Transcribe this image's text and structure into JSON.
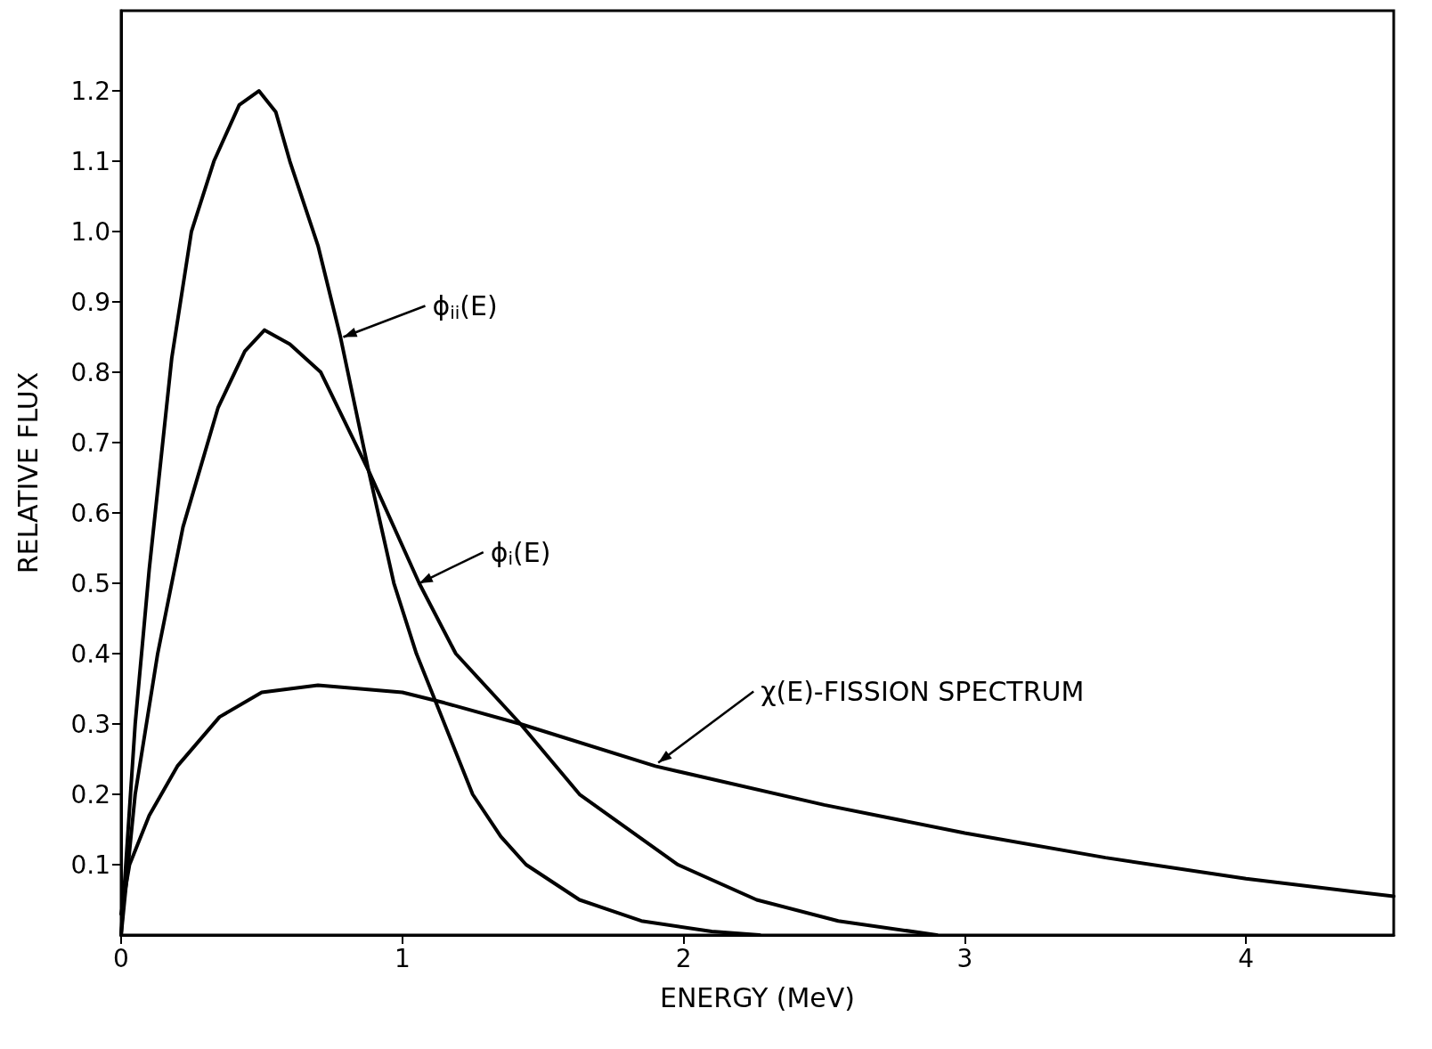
{
  "chart_data": {
    "type": "line",
    "xlabel": "ENERGY (MeV)",
    "ylabel": "RELATIVE FLUX",
    "xlim": [
      0,
      4.525
    ],
    "ylim": [
      0,
      1.314
    ],
    "xticks": [
      0,
      1,
      2,
      3,
      4
    ],
    "yticks": [
      0.1,
      0.2,
      0.3,
      0.4,
      0.5,
      0.6,
      0.7,
      0.8,
      0.9,
      {
        "value": 1,
        "label": "1.0"
      },
      1.1,
      1.2
    ],
    "grid": false,
    "marker": "none",
    "line_style": "solid",
    "series": [
      {
        "color": "#000000",
        "x": [
          0,
          0.05,
          0.1,
          0.18,
          0.25,
          0.33,
          0.42,
          0.49,
          0.55,
          0.6,
          0.7,
          0.78,
          0.88,
          0.97,
          1.05,
          1.12,
          1.25,
          1.35,
          1.44,
          1.63,
          1.85,
          2.1,
          2.27
        ],
        "values": [
          0,
          0.3,
          0.52,
          0.82,
          1.0,
          1.1,
          1.18,
          1.2,
          1.17,
          1.1,
          0.98,
          0.85,
          0.66,
          0.5,
          0.4,
          0.33,
          0.2,
          0.14,
          0.1,
          0.05,
          0.02,
          0.005,
          0
        ]
      },
      {
        "color": "#000000",
        "x": [
          0,
          0.05,
          0.13,
          0.22,
          0.345,
          0.44,
          0.51,
          0.6,
          0.71,
          0.88,
          1.06,
          1.19,
          1.42,
          1.63,
          1.98,
          2.26,
          2.55,
          2.9
        ],
        "values": [
          0,
          0.2,
          0.4,
          0.58,
          0.75,
          0.83,
          0.86,
          0.84,
          0.8,
          0.66,
          0.5,
          0.4,
          0.3,
          0.2,
          0.1,
          0.05,
          0.02,
          0
        ]
      },
      {
        "color": "#000000",
        "x": [
          0,
          0.03,
          0.1,
          0.2,
          0.35,
          0.5,
          0.7,
          1.0,
          1.15,
          1.42,
          1.9,
          2.5,
          3.0,
          3.5,
          4.0,
          4.525
        ],
        "values": [
          0.03,
          0.1,
          0.17,
          0.24,
          0.31,
          0.345,
          0.355,
          0.345,
          0.33,
          0.3,
          0.24,
          0.185,
          0.145,
          0.11,
          0.08,
          0.055
        ]
      }
    ],
    "annotations": [
      {
        "text": "ϕ$_{ii}$(E)",
        "x": 0.79,
        "y": 0.85
      },
      {
        "text": "ϕ$_{i}$(E)",
        "x": 1.06,
        "y": 0.5
      },
      {
        "text": "χ(E)-FISSION SPECTRUM",
        "x": 1.91,
        "y": 0.245
      }
    ]
  }
}
